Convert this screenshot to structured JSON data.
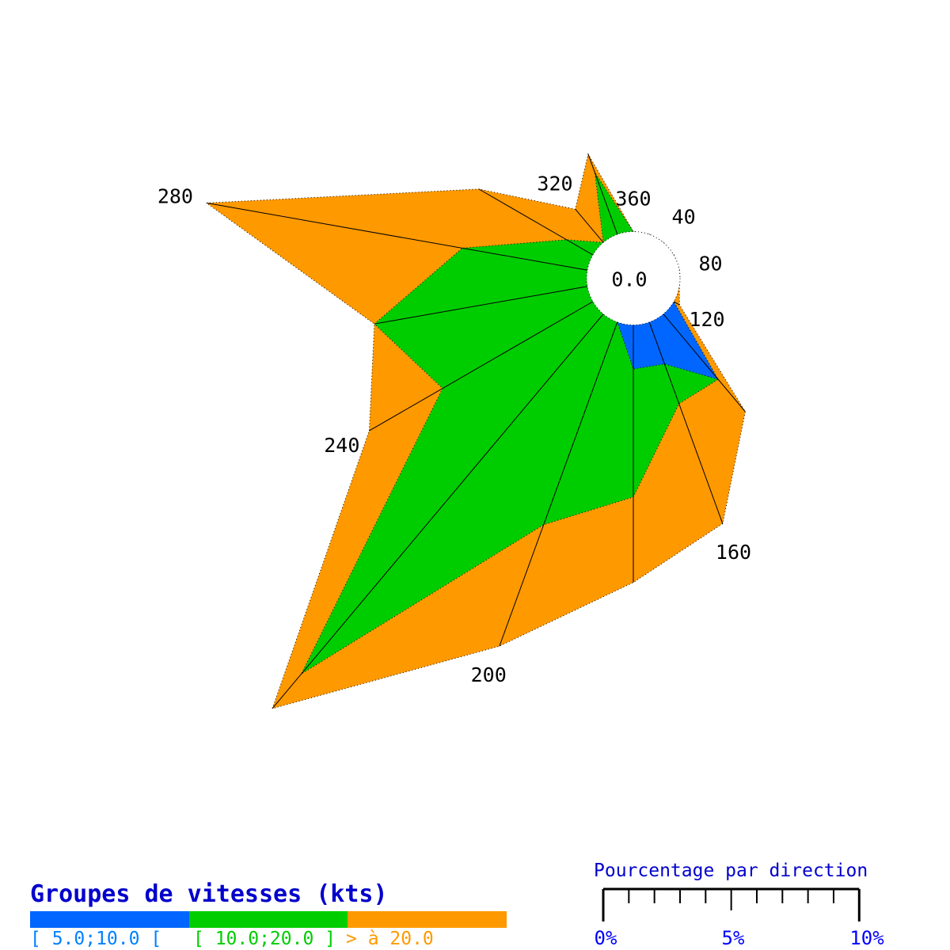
{
  "chart_data": {
    "type": "windrose",
    "center_label": "0.0",
    "direction_step_deg": 20,
    "directions": [
      20,
      40,
      60,
      80,
      100,
      120,
      140,
      160,
      180,
      200,
      220,
      240,
      260,
      280,
      300,
      320,
      340,
      360
    ],
    "direction_tick_labels": [
      {
        "dir": 40,
        "label": "40"
      },
      {
        "dir": 80,
        "label": "80"
      },
      {
        "dir": 120,
        "label": "120"
      },
      {
        "dir": 160,
        "label": "160"
      },
      {
        "dir": 200,
        "label": "200"
      },
      {
        "dir": 240,
        "label": "240"
      },
      {
        "dir": 280,
        "label": "280"
      },
      {
        "dir": 320,
        "label": "320"
      },
      {
        "dir": 360,
        "label": "360"
      }
    ],
    "series": [
      {
        "name": "[ 5.0;10.0 [",
        "color": "#0066FF",
        "values_pct": [
          0,
          0,
          0,
          0,
          0,
          0,
          3.33,
          1.74,
          1.72,
          0,
          0,
          0,
          0,
          0,
          0,
          0,
          0,
          0
        ]
      },
      {
        "name": "[ 10.0;20.0 ]",
        "color": "#00CD00",
        "values_pct": [
          0,
          0,
          0,
          0,
          0,
          0,
          0,
          1.65,
          5.0,
          8.42,
          18.35,
          6.78,
          8.45,
          4.96,
          1.19,
          0,
          2.57,
          0
        ]
      },
      {
        "name": "> à 20.0",
        "color": "#FF9900",
        "values_pct": [
          0,
          0,
          0,
          0,
          0,
          0.26,
          1.65,
          4.99,
          3.34,
          5.05,
          1.77,
          3.31,
          0,
          10.15,
          3.96,
          1.7,
          0.77,
          0
        ]
      }
    ],
    "scale": {
      "title": "Pourcentage par direction",
      "min_pct": 0,
      "max_pct": 10,
      "minor_step_pct": 1,
      "tick_labels": [
        "0%",
        "5%",
        "10%"
      ]
    }
  },
  "legend": {
    "title": "Groupes de vitesses (kts)",
    "items": [
      {
        "label": "[ 5.0;10.0 [",
        "bar_color": "#0066FF",
        "text_color": "#0080FF"
      },
      {
        "label": "[ 10.0;20.0 ]",
        "bar_color": "#00CD00",
        "text_color": "#00CD00"
      },
      {
        "label": "> à 20.0",
        "bar_color": "#FF9900",
        "text_color": "#FF9900"
      }
    ]
  }
}
